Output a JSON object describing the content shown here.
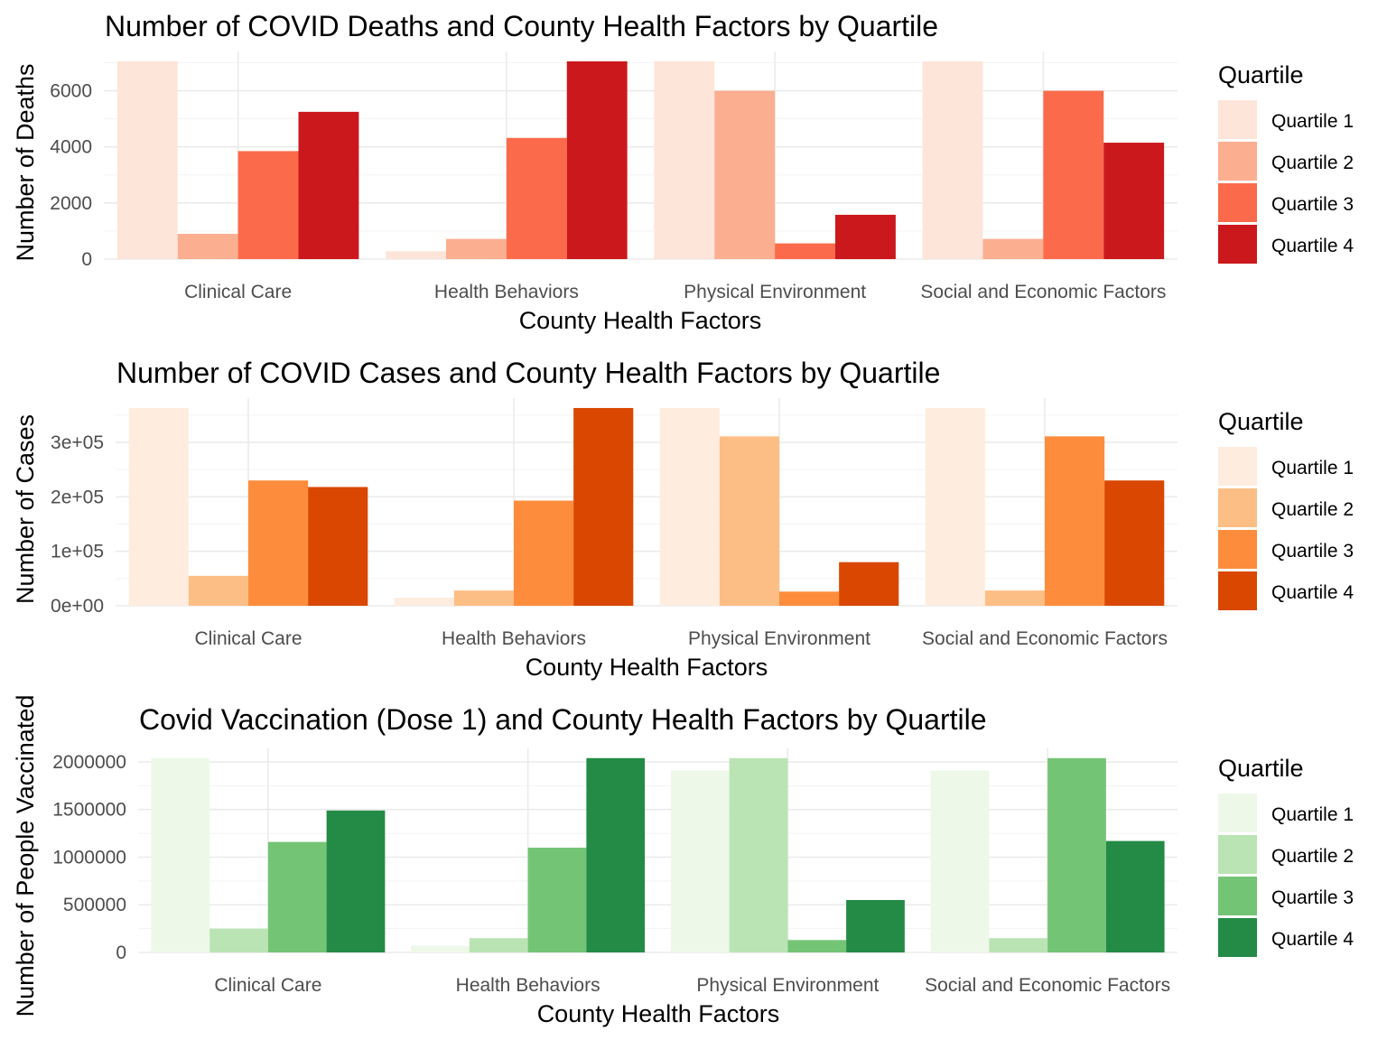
{
  "chart_data": [
    {
      "type": "bar",
      "title": "Number of COVID Deaths and County Health Factors by Quartile",
      "xlabel": "County Health Factors",
      "ylabel": "Number of Deaths",
      "categories": [
        "Clinical Care",
        "Health Behaviors",
        "Physical Environment",
        "Social and Economic Factors"
      ],
      "ylim": [
        0,
        7000
      ],
      "yticks": [
        0,
        2000,
        4000,
        6000
      ],
      "ytick_labels": [
        "0",
        "2000",
        "4000",
        "6000"
      ],
      "grid": true,
      "legend": {
        "title": "Quartile",
        "position": "right"
      },
      "series": [
        {
          "name": "Quartile 1",
          "color": "#fee5d9",
          "values": [
            7050,
            280,
            7050,
            7050
          ]
        },
        {
          "name": "Quartile 2",
          "color": "#fcae91",
          "values": [
            900,
            720,
            6000,
            720
          ]
        },
        {
          "name": "Quartile 3",
          "color": "#fb6a4a",
          "values": [
            3850,
            4320,
            560,
            6000
          ]
        },
        {
          "name": "Quartile 4",
          "color": "#cb181d",
          "values": [
            5250,
            7050,
            1580,
            4150
          ]
        }
      ]
    },
    {
      "type": "bar",
      "title": "Number of COVID Cases and County Health Factors by Quartile",
      "xlabel": "County Health Factors",
      "ylabel": "Number of Cases",
      "categories": [
        "Clinical Care",
        "Health Behaviors",
        "Physical Environment",
        "Social and Economic Factors"
      ],
      "ylim": [
        0,
        360000
      ],
      "yticks": [
        0,
        100000,
        200000,
        300000
      ],
      "ytick_labels": [
        "0e+00",
        "1e+05",
        "2e+05",
        "3e+05"
      ],
      "grid": true,
      "legend": {
        "title": "Quartile",
        "position": "right"
      },
      "series": [
        {
          "name": "Quartile 1",
          "color": "#feedde",
          "values": [
            363000,
            15000,
            363000,
            363000
          ]
        },
        {
          "name": "Quartile 2",
          "color": "#fdbe85",
          "values": [
            55000,
            28000,
            311000,
            28000
          ]
        },
        {
          "name": "Quartile 3",
          "color": "#fd8d3c",
          "values": [
            230000,
            193000,
            26000,
            311000
          ]
        },
        {
          "name": "Quartile 4",
          "color": "#d94701",
          "values": [
            218000,
            363000,
            80000,
            230000
          ]
        }
      ]
    },
    {
      "type": "bar",
      "title": "Covid Vaccination (Dose 1) and County Health Factors by Quartile",
      "xlabel": "County Health Factors",
      "ylabel": "Number of People Vaccinated",
      "categories": [
        "Clinical Care",
        "Health Behaviors",
        "Physical Environment",
        "Social and Economic Factors"
      ],
      "ylim": [
        0,
        2000000
      ],
      "yticks": [
        0,
        500000,
        1000000,
        1500000,
        2000000
      ],
      "ytick_labels": [
        "0",
        "500000",
        "1000000",
        "1500000",
        "2000000"
      ],
      "grid": true,
      "legend": {
        "title": "Quartile",
        "position": "right"
      },
      "series": [
        {
          "name": "Quartile 1",
          "color": "#edf8e9",
          "values": [
            2040000,
            70000,
            1910000,
            1910000
          ]
        },
        {
          "name": "Quartile 2",
          "color": "#bae4b3",
          "values": [
            250000,
            150000,
            2040000,
            150000
          ]
        },
        {
          "name": "Quartile 3",
          "color": "#74c476",
          "values": [
            1160000,
            1100000,
            130000,
            2040000
          ]
        },
        {
          "name": "Quartile 4",
          "color": "#238b45",
          "values": [
            1490000,
            2040000,
            550000,
            1170000
          ]
        }
      ]
    }
  ]
}
